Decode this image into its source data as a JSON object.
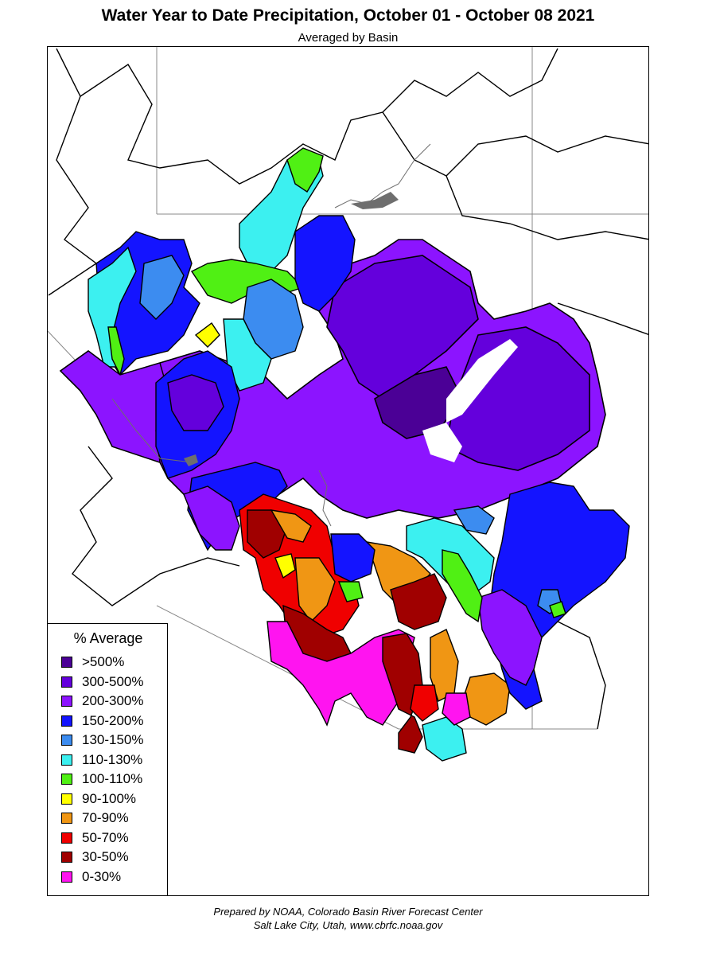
{
  "title": "Water Year to Date Precipitation, October 01  - October 08 2021",
  "subtitle": "Averaged by Basin",
  "legend": {
    "title": "% Average",
    "items": [
      {
        "label": ">500%",
        "color": "#4b0096"
      },
      {
        "label": "300-500%",
        "color": "#6400dc"
      },
      {
        "label": "200-300%",
        "color": "#8c14ff"
      },
      {
        "label": "150-200%",
        "color": "#1414ff"
      },
      {
        "label": "130-150%",
        "color": "#3c8cf0"
      },
      {
        "label": "110-130%",
        "color": "#3cf0f0"
      },
      {
        "label": "100-110%",
        "color": "#50f014"
      },
      {
        "label": "90-100%",
        "color": "#ffff00"
      },
      {
        "label": "70-90%",
        "color": "#f09614"
      },
      {
        "label": "50-70%",
        "color": "#f00000"
      },
      {
        "label": "30-50%",
        "color": "#a00000"
      },
      {
        "label": "0-30%",
        "color": "#ff14f0"
      }
    ]
  },
  "credit": {
    "line1": "Prepared by NOAA, Colorado Basin River Forecast Center",
    "line2": "Salt Lake City, Utah, www.cbrfc.noaa.gov"
  }
}
